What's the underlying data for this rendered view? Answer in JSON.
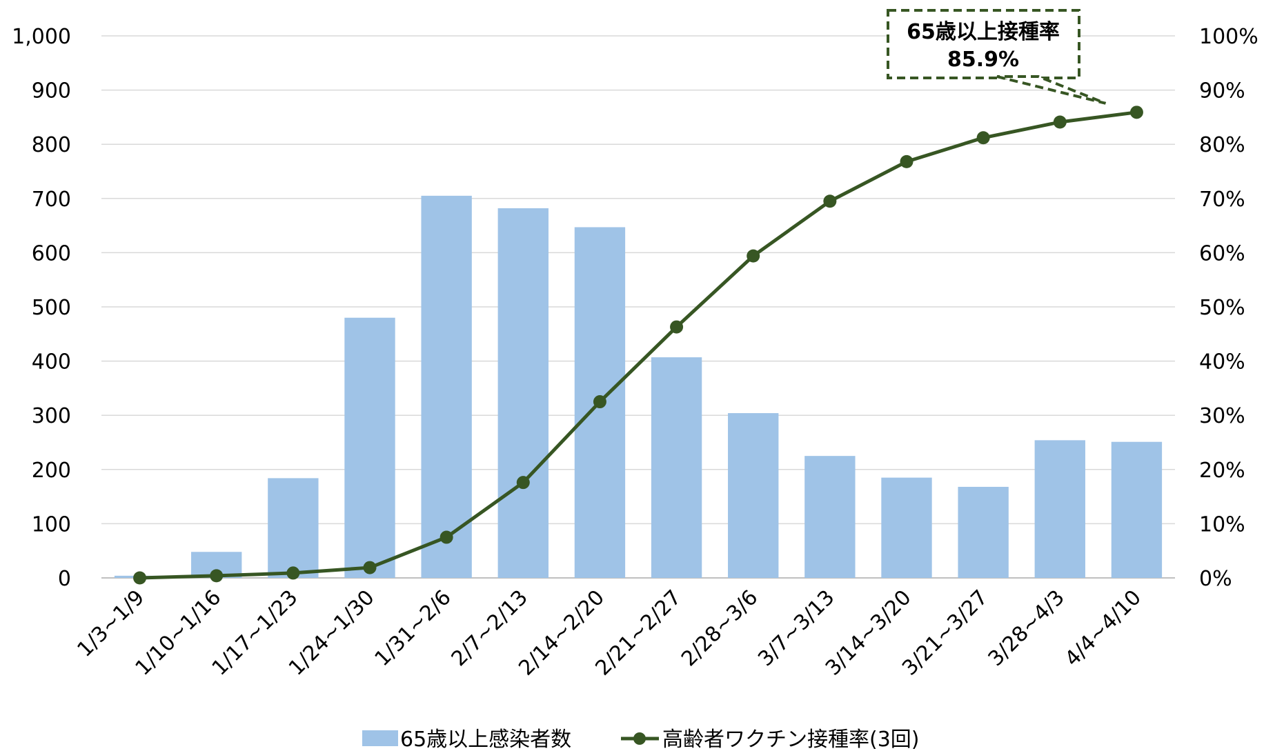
{
  "chart_data": {
    "type": "bar",
    "categories": [
      "1/3~1/9",
      "1/10~1/16",
      "1/17~1/23",
      "1/24~1/30",
      "1/31~2/6",
      "2/7~2/13",
      "2/14~2/20",
      "2/21~2/27",
      "2/28~3/6",
      "3/7~3/13",
      "3/14~3/20",
      "3/21~3/27",
      "3/28~4/3",
      "4/4~4/10"
    ],
    "series": [
      {
        "name": "65歳以上感染者数",
        "type": "bar",
        "axis": "left",
        "color": "#9fc3e7",
        "values": [
          4,
          48,
          184,
          480,
          705,
          682,
          647,
          407,
          304,
          225,
          185,
          168,
          254,
          251
        ]
      },
      {
        "name": "高齢者ワクチン接種率(3回)",
        "type": "line",
        "axis": "right",
        "color": "#375623",
        "values": [
          0.0,
          0.4,
          0.9,
          1.9,
          7.5,
          17.6,
          32.5,
          46.3,
          59.4,
          69.5,
          76.8,
          81.2,
          84.1,
          85.9
        ]
      }
    ],
    "y_left": {
      "ylim": [
        0,
        1000
      ],
      "ticks": [
        "0",
        "100",
        "200",
        "300",
        "400",
        "500",
        "600",
        "700",
        "800",
        "900",
        "1,000"
      ]
    },
    "y_right": {
      "ylim": [
        0,
        100
      ],
      "ticks": [
        "0%",
        "10%",
        "20%",
        "30%",
        "40%",
        "50%",
        "60%",
        "70%",
        "80%",
        "90%",
        "100%"
      ]
    },
    "grid": true,
    "legend_position": "bottom",
    "annotation": {
      "line1": "65歳以上接種率",
      "line2": "85.9%",
      "target_category_index": 13
    }
  }
}
